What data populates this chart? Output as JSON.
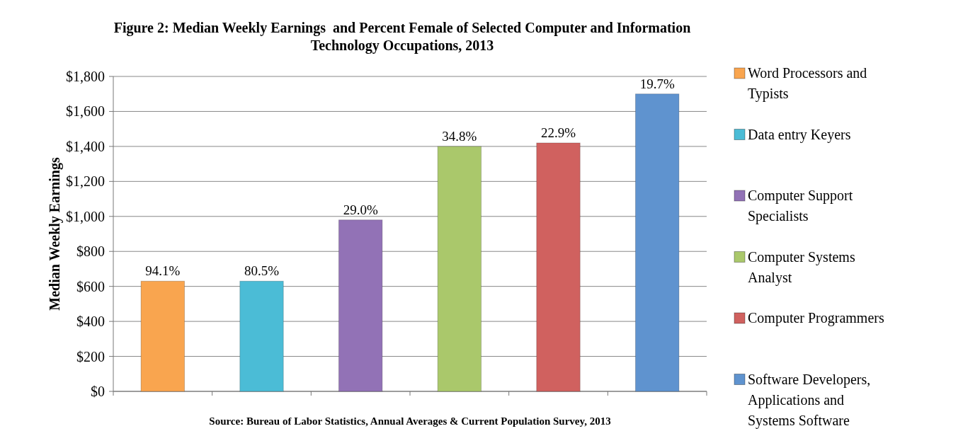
{
  "chart_data": {
    "type": "bar",
    "title": "Figure 2: Median Weekly Earnings  and Percent Female of Selected Computer and Information Technology Occupations, 2013",
    "ylabel": "Median Weekly Earnings",
    "annotations": [
      "Source: Bureau of Labor Statistics, Annual Averages & Current Population Survey, 2013",
      {
        "text": "94.1%",
        "y": 630
      },
      {
        "text": "80.5%",
        "y": 630
      },
      {
        "text": "29.0%",
        "y": 980
      },
      {
        "text": "34.8%",
        "y": 1400
      },
      {
        "text": "22.9%",
        "y": 1420
      },
      {
        "text": "19.7%",
        "y": 1700
      }
    ],
    "categories": [
      null,
      null,
      null,
      null,
      null,
      null
    ],
    "series": [
      {
        "name": "Word Processors and Typists",
        "color": "#f9a54f",
        "values": [
          630,
          null,
          null,
          null,
          null,
          null
        ]
      },
      {
        "name": "Data entry Keyers",
        "color": "#4bbcd6",
        "values": [
          null,
          630,
          null,
          null,
          null,
          null
        ]
      },
      {
        "name": "Computer Support Specialists",
        "color": "#9272b6",
        "values": [
          null,
          null,
          980,
          null,
          null,
          null
        ]
      },
      {
        "name": "Computer Systems Analyst",
        "color": "#aac86b",
        "values": [
          null,
          null,
          null,
          1400,
          null,
          null
        ]
      },
      {
        "name": "Computer Programmers",
        "color": "#d0615f",
        "values": [
          null,
          null,
          null,
          null,
          1420,
          null
        ]
      },
      {
        "name": "Software Developers, Applications and Systems Software",
        "color": "#5f93cf",
        "values": [
          null,
          null,
          null,
          null,
          null,
          1700
        ]
      }
    ],
    "ylim": [
      0,
      1800
    ],
    "yticks": [
      {
        "value": 0,
        "label": "$0"
      },
      {
        "value": 200,
        "label": "$200"
      },
      {
        "value": 400,
        "label": "$400"
      },
      {
        "value": 600,
        "label": "$600"
      },
      {
        "value": 800,
        "label": "$800"
      },
      {
        "value": 1000,
        "label": "$1,000"
      },
      {
        "value": 1200,
        "label": "$1,200"
      },
      {
        "value": 1400,
        "label": "$1,400"
      },
      {
        "value": 1600,
        "label": "$1,600"
      },
      {
        "value": 1800,
        "label": "$1,800"
      }
    ],
    "grid": "y",
    "legend": "right"
  }
}
